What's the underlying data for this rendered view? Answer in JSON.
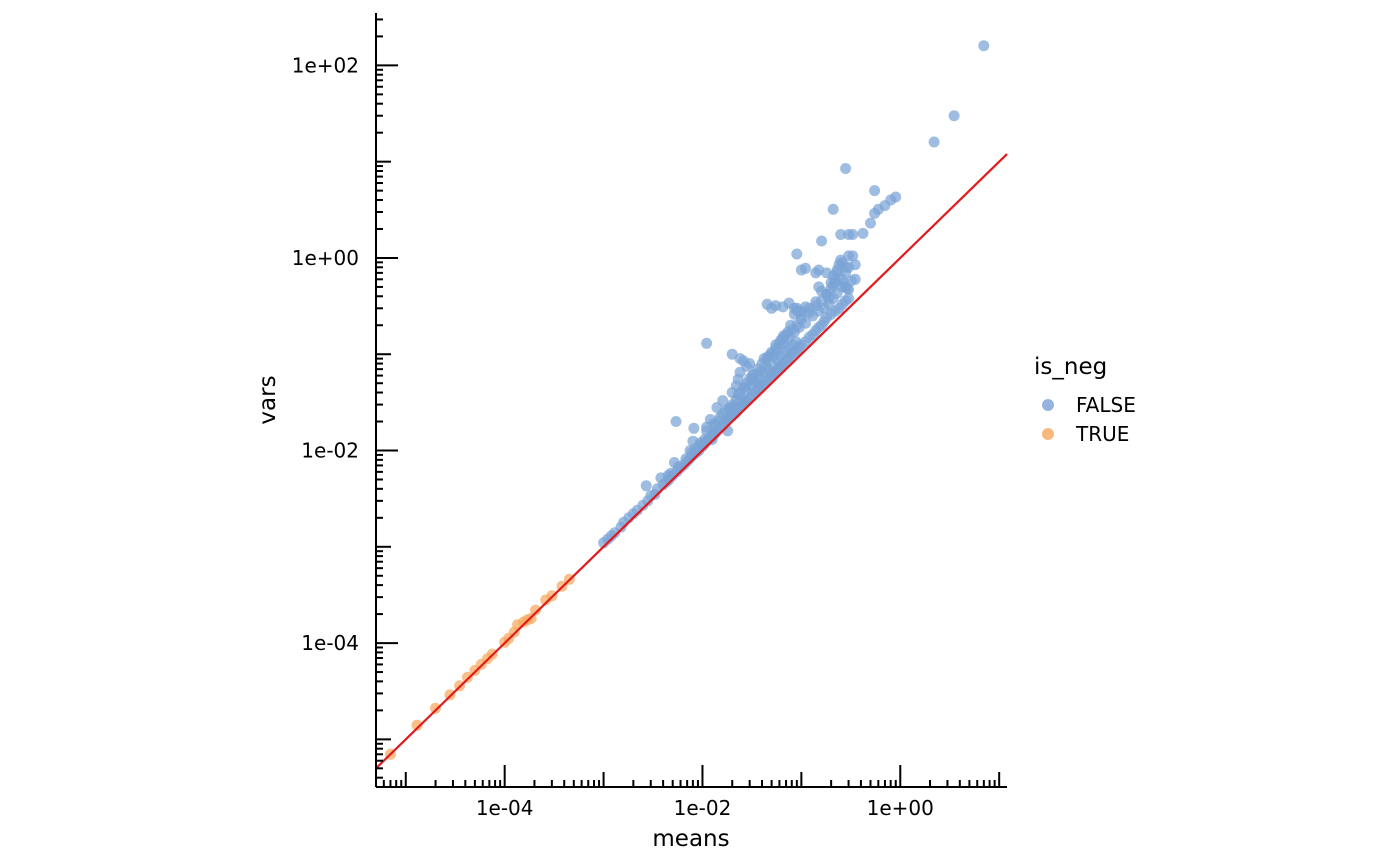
{
  "chart_data": {
    "type": "scatter",
    "xlabel": "means",
    "ylabel": "vars",
    "x_scale": "log10",
    "y_scale": "log10",
    "xlim": [
      5e-06,
      12
    ],
    "ylim": [
      3.2e-06,
      350
    ],
    "x_ticks": [
      {
        "value": 0.0001,
        "label": "1e-04"
      },
      {
        "value": 0.01,
        "label": "1e-02"
      },
      {
        "value": 1,
        "label": "1e+00"
      }
    ],
    "y_ticks": [
      {
        "value": 0.0001,
        "label": "1e-04"
      },
      {
        "value": 0.01,
        "label": "1e-02"
      },
      {
        "value": 1,
        "label": "1e+00"
      },
      {
        "value": 100,
        "label": "1e+02"
      }
    ],
    "grid": false,
    "legend": {
      "title": "is_neg",
      "placement": "right",
      "entries": [
        {
          "label": "FALSE",
          "color": "#7aa3d6"
        },
        {
          "label": "TRUE",
          "color": "#f7a85d"
        }
      ]
    },
    "reference_line": {
      "type": "identity",
      "label": "y = x",
      "color": "#e31a1c"
    },
    "series": [
      {
        "name": "FALSE",
        "color": "#7aa3d6",
        "points": [
          [
            0.001,
            0.0011
          ],
          [
            0.0011,
            0.0012
          ],
          [
            0.0012,
            0.0013
          ],
          [
            0.0013,
            0.0014
          ],
          [
            0.0015,
            0.0016
          ],
          [
            0.0016,
            0.0018
          ],
          [
            0.0018,
            0.002
          ],
          [
            0.002,
            0.0022
          ],
          [
            0.0022,
            0.0024
          ],
          [
            0.0025,
            0.0027
          ],
          [
            0.0028,
            0.003
          ],
          [
            0.003,
            0.0034
          ],
          [
            0.0033,
            0.0035
          ],
          [
            0.0035,
            0.004
          ],
          [
            0.004,
            0.0044
          ],
          [
            0.0043,
            0.0047
          ],
          [
            0.0046,
            0.005
          ],
          [
            0.005,
            0.0055
          ],
          [
            0.0055,
            0.006
          ],
          [
            0.006,
            0.0066
          ],
          [
            0.0065,
            0.0071
          ],
          [
            0.007,
            0.0077
          ],
          [
            0.0075,
            0.0083
          ],
          [
            0.008,
            0.0089
          ],
          [
            0.0086,
            0.0095
          ],
          [
            0.0092,
            0.01
          ],
          [
            0.01,
            0.011
          ],
          [
            0.0105,
            0.0118
          ],
          [
            0.011,
            0.0125
          ],
          [
            0.0115,
            0.013
          ],
          [
            0.012,
            0.0135
          ],
          [
            0.0125,
            0.014
          ],
          [
            0.013,
            0.0145
          ],
          [
            0.0135,
            0.0152
          ],
          [
            0.014,
            0.016
          ],
          [
            0.015,
            0.017
          ],
          [
            0.016,
            0.018
          ],
          [
            0.017,
            0.0195
          ],
          [
            0.018,
            0.021
          ],
          [
            0.019,
            0.022
          ],
          [
            0.02,
            0.023
          ],
          [
            0.021,
            0.024
          ],
          [
            0.022,
            0.025
          ],
          [
            0.023,
            0.027
          ],
          [
            0.024,
            0.028
          ],
          [
            0.025,
            0.029
          ],
          [
            0.026,
            0.031
          ],
          [
            0.027,
            0.032
          ],
          [
            0.028,
            0.033
          ],
          [
            0.03,
            0.035
          ],
          [
            0.032,
            0.038
          ],
          [
            0.034,
            0.04
          ],
          [
            0.036,
            0.043
          ],
          [
            0.038,
            0.045
          ],
          [
            0.04,
            0.048
          ],
          [
            0.042,
            0.05
          ],
          [
            0.045,
            0.053
          ],
          [
            0.048,
            0.057
          ],
          [
            0.05,
            0.06
          ],
          [
            0.052,
            0.063
          ],
          [
            0.055,
            0.066
          ],
          [
            0.058,
            0.07
          ],
          [
            0.06,
            0.073
          ],
          [
            0.063,
            0.077
          ],
          [
            0.066,
            0.08
          ],
          [
            0.07,
            0.085
          ],
          [
            0.073,
            0.09
          ],
          [
            0.076,
            0.095
          ],
          [
            0.08,
            0.1
          ],
          [
            0.085,
            0.105
          ],
          [
            0.09,
            0.11
          ],
          [
            0.095,
            0.118
          ],
          [
            0.1,
            0.125
          ],
          [
            0.11,
            0.135
          ],
          [
            0.12,
            0.15
          ],
          [
            0.13,
            0.16
          ],
          [
            0.14,
            0.175
          ],
          [
            0.15,
            0.19
          ],
          [
            0.16,
            0.2
          ],
          [
            0.17,
            0.22
          ],
          [
            0.18,
            0.24
          ],
          [
            0.2,
            0.26
          ],
          [
            0.22,
            0.28
          ],
          [
            0.24,
            0.3
          ],
          [
            0.26,
            0.33
          ],
          [
            0.28,
            0.36
          ],
          [
            0.3,
            0.38
          ],
          [
            0.0052,
            0.0075
          ],
          [
            0.0045,
            0.0055
          ],
          [
            0.0085,
            0.0105
          ],
          [
            0.0095,
            0.012
          ],
          [
            0.011,
            0.016
          ],
          [
            0.013,
            0.019
          ],
          [
            0.015,
            0.022
          ],
          [
            0.017,
            0.026
          ],
          [
            0.02,
            0.03
          ],
          [
            0.022,
            0.034
          ],
          [
            0.024,
            0.04
          ],
          [
            0.026,
            0.045
          ],
          [
            0.028,
            0.05
          ],
          [
            0.03,
            0.056
          ],
          [
            0.033,
            0.062
          ],
          [
            0.036,
            0.07
          ],
          [
            0.04,
            0.08
          ],
          [
            0.045,
            0.09
          ],
          [
            0.05,
            0.1
          ],
          [
            0.055,
            0.115
          ],
          [
            0.06,
            0.13
          ],
          [
            0.065,
            0.145
          ],
          [
            0.07,
            0.16
          ],
          [
            0.08,
            0.18
          ],
          [
            0.09,
            0.2
          ],
          [
            0.1,
            0.23
          ],
          [
            0.12,
            0.27
          ],
          [
            0.14,
            0.32
          ],
          [
            0.16,
            0.36
          ],
          [
            0.18,
            0.42
          ],
          [
            0.2,
            0.48
          ],
          [
            0.22,
            0.55
          ],
          [
            0.25,
            0.62
          ],
          [
            0.28,
            0.7
          ],
          [
            0.3,
            0.8
          ],
          [
            0.0075,
            0.01
          ],
          [
            0.008,
            0.0125
          ],
          [
            0.012,
            0.021
          ],
          [
            0.016,
            0.024
          ],
          [
            0.019,
            0.028
          ],
          [
            0.023,
            0.038
          ],
          [
            0.027,
            0.046
          ],
          [
            0.032,
            0.055
          ],
          [
            0.038,
            0.065
          ],
          [
            0.044,
            0.075
          ],
          [
            0.052,
            0.095
          ],
          [
            0.058,
            0.11
          ],
          [
            0.066,
            0.13
          ],
          [
            0.075,
            0.15
          ],
          [
            0.085,
            0.17
          ],
          [
            0.095,
            0.19
          ],
          [
            0.11,
            0.21
          ],
          [
            0.13,
            0.25
          ],
          [
            0.15,
            0.28
          ],
          [
            0.17,
            0.3
          ],
          [
            0.19,
            0.33
          ],
          [
            0.21,
            0.38
          ],
          [
            0.23,
            0.43
          ],
          [
            0.26,
            0.5
          ],
          [
            0.0027,
            0.0043
          ],
          [
            0.0038,
            0.0052
          ],
          [
            0.0048,
            0.0058
          ],
          [
            0.0057,
            0.0068
          ],
          [
            0.0068,
            0.0082
          ],
          [
            0.0078,
            0.0095
          ],
          [
            0.0093,
            0.0113
          ],
          [
            0.0105,
            0.013
          ],
          [
            0.0125,
            0.015
          ],
          [
            0.0135,
            0.0185
          ],
          [
            0.0145,
            0.02
          ],
          [
            0.0175,
            0.021
          ],
          [
            0.0185,
            0.027
          ],
          [
            0.021,
            0.029
          ],
          [
            0.024,
            0.035
          ],
          [
            0.028,
            0.042
          ],
          [
            0.031,
            0.048
          ],
          [
            0.034,
            0.052
          ],
          [
            0.037,
            0.058
          ],
          [
            0.041,
            0.064
          ],
          [
            0.046,
            0.07
          ],
          [
            0.051,
            0.078
          ],
          [
            0.057,
            0.088
          ],
          [
            0.062,
            0.095
          ],
          [
            0.068,
            0.105
          ],
          [
            0.074,
            0.115
          ],
          [
            0.081,
            0.125
          ],
          [
            0.088,
            0.135
          ],
          [
            0.0054,
            0.02
          ],
          [
            0.0082,
            0.017
          ],
          [
            0.011,
            0.0175
          ],
          [
            0.0125,
            0.013
          ],
          [
            0.014,
            0.028
          ],
          [
            0.016,
            0.033
          ],
          [
            0.018,
            0.016
          ],
          [
            0.02,
            0.04
          ],
          [
            0.022,
            0.047
          ],
          [
            0.023,
            0.055
          ],
          [
            0.024,
            0.065
          ],
          [
            0.026,
            0.085
          ],
          [
            0.028,
            0.075
          ],
          [
            0.032,
            0.06
          ],
          [
            0.037,
            0.05
          ],
          [
            0.042,
            0.09
          ],
          [
            0.046,
            0.095
          ],
          [
            0.05,
            0.105
          ],
          [
            0.055,
            0.125
          ],
          [
            0.062,
            0.14
          ],
          [
            0.066,
            0.155
          ],
          [
            0.073,
            0.17
          ],
          [
            0.078,
            0.2
          ],
          [
            0.085,
            0.26
          ],
          [
            0.09,
            0.3
          ],
          [
            0.1,
            0.28
          ],
          [
            0.11,
            0.31
          ],
          [
            0.011,
            0.13
          ],
          [
            0.02,
            0.1
          ],
          [
            0.024,
            0.09
          ],
          [
            0.03,
            0.08
          ],
          [
            0.045,
            0.33
          ],
          [
            0.05,
            0.3
          ],
          [
            0.055,
            0.32
          ],
          [
            0.065,
            0.31
          ],
          [
            0.075,
            0.34
          ],
          [
            0.085,
            0.3
          ],
          [
            0.092,
            0.28
          ],
          [
            0.1,
            0.25
          ],
          [
            0.12,
            0.3
          ],
          [
            0.14,
            0.35
          ],
          [
            0.15,
            0.5
          ],
          [
            0.16,
            0.45
          ],
          [
            0.18,
            0.42
          ],
          [
            0.19,
            0.38
          ],
          [
            0.2,
            0.55
          ],
          [
            0.21,
            0.52
          ],
          [
            0.22,
            0.6
          ],
          [
            0.23,
            0.7
          ],
          [
            0.24,
            0.85
          ],
          [
            0.25,
            0.95
          ],
          [
            0.27,
            0.55
          ],
          [
            0.28,
            0.5
          ],
          [
            0.29,
            0.48
          ],
          [
            0.3,
            0.47
          ],
          [
            0.32,
            0.58
          ],
          [
            0.35,
            0.6
          ],
          [
            0.1,
            0.75
          ],
          [
            0.11,
            0.78
          ],
          [
            0.14,
            0.7
          ],
          [
            0.15,
            0.75
          ],
          [
            0.18,
            0.7
          ],
          [
            0.21,
            0.65
          ],
          [
            0.23,
            0.75
          ],
          [
            0.26,
            0.9
          ],
          [
            0.28,
            0.8
          ],
          [
            0.3,
            1.05
          ],
          [
            0.33,
            1.05
          ],
          [
            0.35,
            0.85
          ],
          [
            0.09,
            1.1
          ],
          [
            0.16,
            1.5
          ],
          [
            0.25,
            1.75
          ],
          [
            0.3,
            1.75
          ],
          [
            0.33,
            1.75
          ],
          [
            0.42,
            1.8
          ],
          [
            0.5,
            2.3
          ],
          [
            0.55,
            2.9
          ],
          [
            0.6,
            3.2
          ],
          [
            0.7,
            3.5
          ],
          [
            0.8,
            4.0
          ],
          [
            0.9,
            4.3
          ],
          [
            0.21,
            3.2
          ],
          [
            0.28,
            8.5
          ],
          [
            0.55,
            5.0
          ],
          [
            2.2,
            16.0
          ],
          [
            3.5,
            30.0
          ],
          [
            7.0,
            160.0
          ]
        ]
      },
      {
        "name": "TRUE",
        "color": "#f7a85d",
        "points": [
          [
            7e-06,
            7e-06
          ],
          [
            1.3e-05,
            1.4e-05
          ],
          [
            2e-05,
            2.1e-05
          ],
          [
            2.8e-05,
            2.9e-05
          ],
          [
            3.5e-05,
            3.6e-05
          ],
          [
            4.2e-05,
            4.4e-05
          ],
          [
            5e-05,
            5.2e-05
          ],
          [
            5.8e-05,
            6e-05
          ],
          [
            6.7e-05,
            6.9e-05
          ],
          [
            7.5e-05,
            7.7e-05
          ],
          [
            0.0001,
            0.000102
          ],
          [
            0.00011,
            0.000112
          ],
          [
            0.000125,
            0.00013
          ],
          [
            0.000135,
            0.000155
          ],
          [
            0.000155,
            0.000165
          ],
          [
            0.00017,
            0.000175
          ],
          [
            0.000185,
            0.00018
          ],
          [
            0.000205,
            0.00022
          ],
          [
            0.00026,
            0.00028
          ],
          [
            0.0003,
            0.00031
          ],
          [
            0.00038,
            0.00039
          ],
          [
            0.00045,
            0.00046
          ]
        ]
      }
    ]
  }
}
